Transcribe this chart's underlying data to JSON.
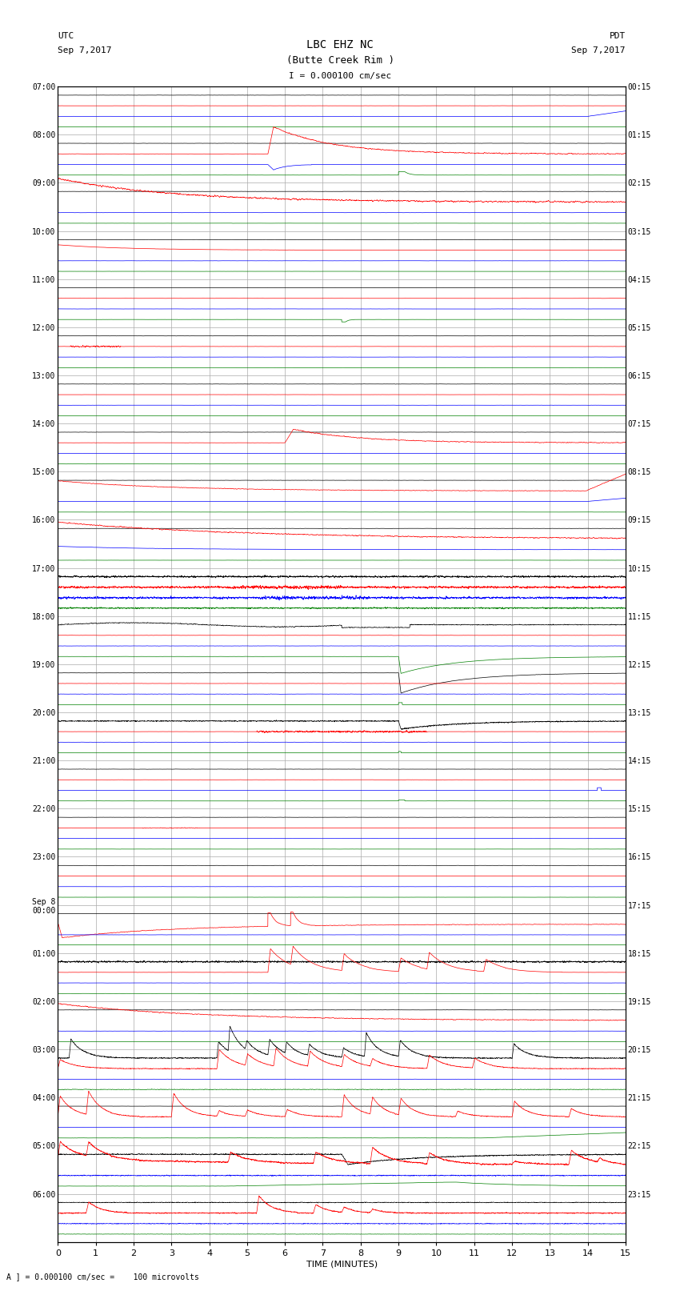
{
  "title_line1": "LBC EHZ NC",
  "title_line2": "(Butte Creek Rim )",
  "scale_label": "I = 0.000100 cm/sec",
  "left_header_line1": "UTC",
  "left_header_line2": "Sep 7,2017",
  "right_header_line1": "PDT",
  "right_header_line2": "Sep 7,2017",
  "bottom_label": "TIME (MINUTES)",
  "bottom_note": "A ] = 0.000100 cm/sec =    100 microvolts",
  "left_times": [
    "07:00",
    "08:00",
    "09:00",
    "10:00",
    "11:00",
    "12:00",
    "13:00",
    "14:00",
    "15:00",
    "16:00",
    "17:00",
    "18:00",
    "19:00",
    "20:00",
    "21:00",
    "22:00",
    "23:00",
    "Sep 8\n00:00",
    "01:00",
    "02:00",
    "03:00",
    "04:00",
    "05:00",
    "06:00"
  ],
  "right_times": [
    "00:15",
    "01:15",
    "02:15",
    "03:15",
    "04:15",
    "05:15",
    "06:15",
    "07:15",
    "08:15",
    "09:15",
    "10:15",
    "11:15",
    "12:15",
    "13:15",
    "14:15",
    "15:15",
    "16:15",
    "17:15",
    "18:15",
    "19:15",
    "20:15",
    "21:15",
    "22:15",
    "23:15"
  ],
  "n_rows": 24,
  "x_min": 0,
  "x_max": 15,
  "bg_color": "#ffffff",
  "grid_color": "#aaaaaa",
  "trace_colors": [
    "black",
    "red",
    "blue",
    "green"
  ],
  "figsize": [
    8.5,
    16.13
  ],
  "dpi": 100,
  "font_size": 8,
  "title_font_size": 10,
  "lw": 0.5
}
